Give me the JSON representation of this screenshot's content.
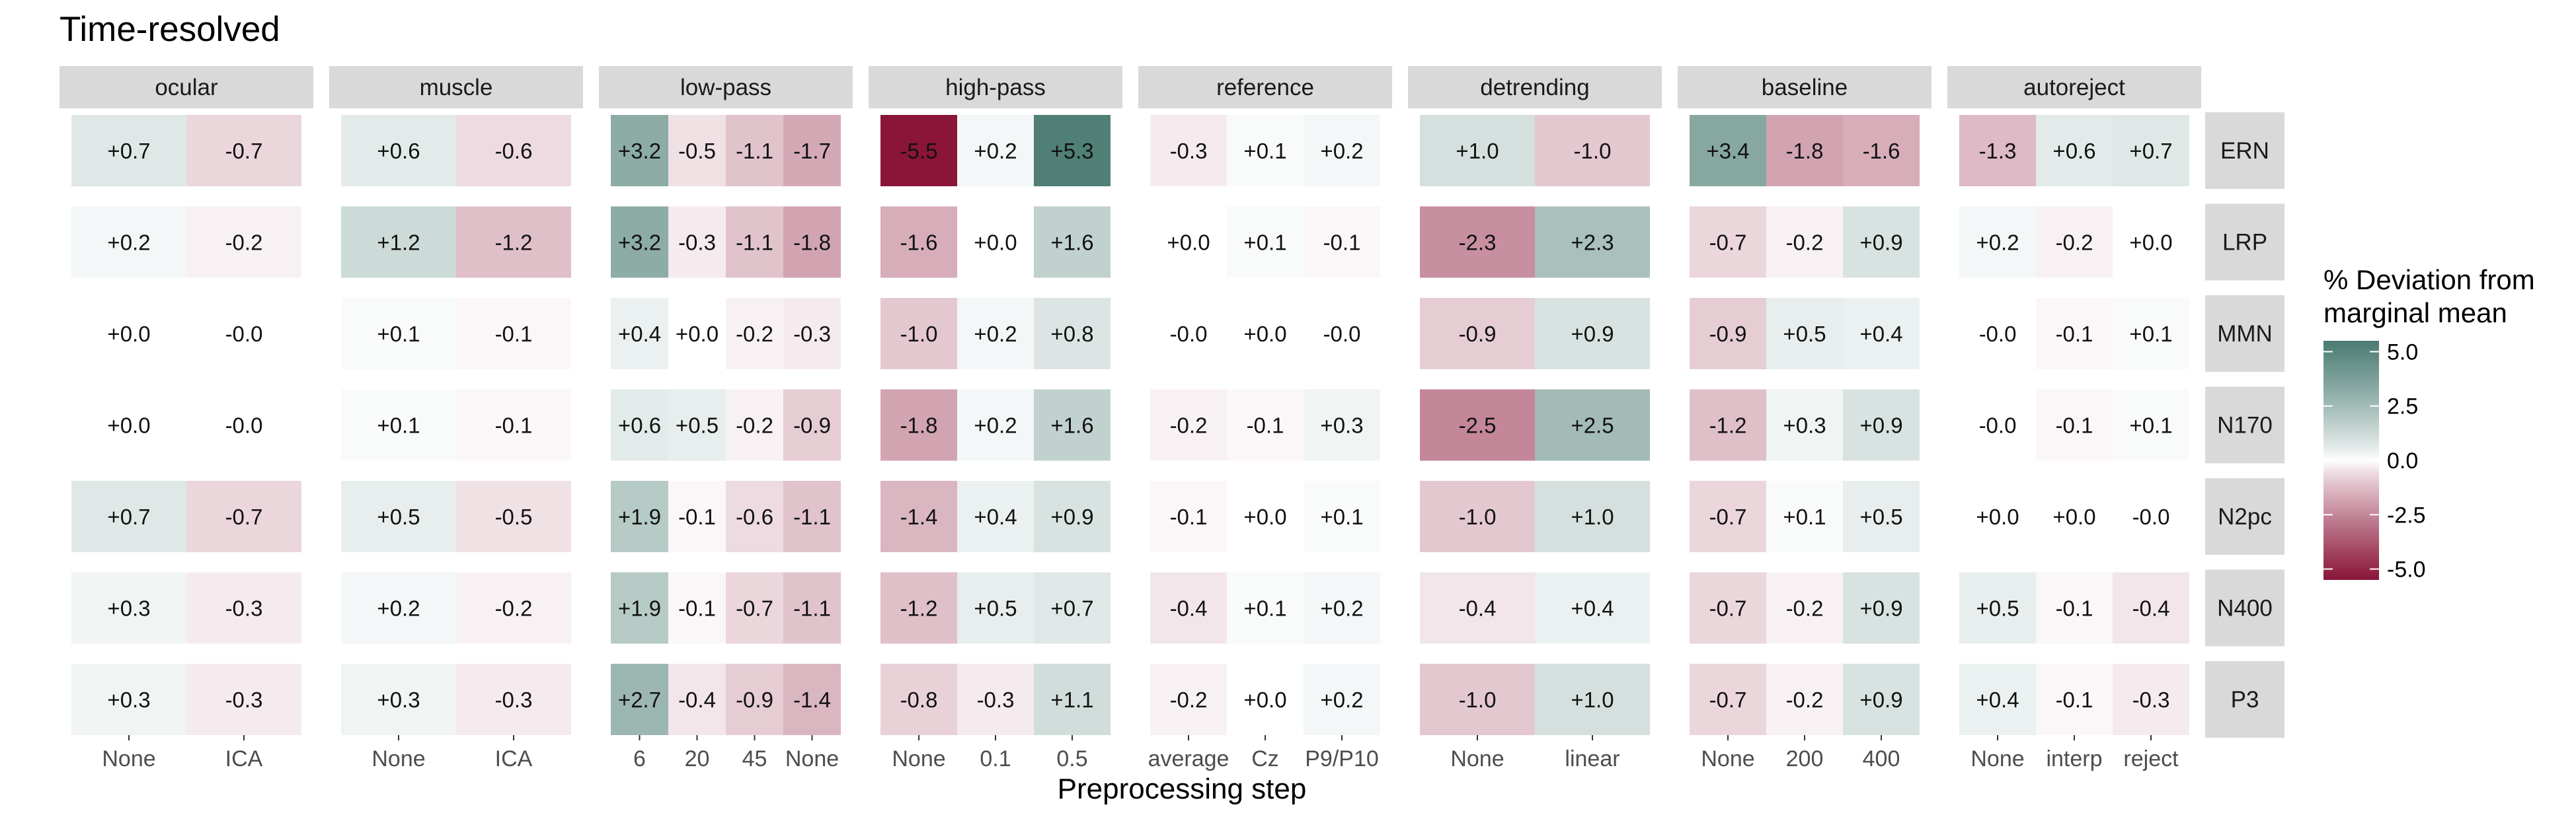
{
  "chart_data": {
    "type": "heatmap",
    "title": "Time-resolved",
    "xlabel": "Preprocessing step",
    "ylabel": "",
    "rows": [
      "ERN",
      "LRP",
      "MMN",
      "N170",
      "N2pc",
      "N400",
      "P3"
    ],
    "legend": {
      "title_lines": [
        "% Deviation from",
        "marginal mean"
      ],
      "ticks": [
        5.0,
        2.5,
        0.0,
        -2.5,
        -5.0
      ],
      "tick_labels": [
        "5.0",
        "2.5",
        "0.0",
        "-2.5",
        "-5.0"
      ],
      "range": [
        -5.5,
        5.5
      ],
      "colors": {
        "high": "#4a7b72",
        "mid": "#ffffff",
        "low": "#8a1538"
      }
    },
    "facets": [
      {
        "name": "ocular",
        "levels": [
          "None",
          "ICA"
        ],
        "values": [
          [
            0.7,
            -0.7
          ],
          [
            0.2,
            -0.2
          ],
          [
            0.0,
            -0.0
          ],
          [
            0.0,
            -0.0
          ],
          [
            0.7,
            -0.7
          ],
          [
            0.3,
            -0.3
          ],
          [
            0.3,
            -0.3
          ]
        ],
        "labels": [
          [
            "+0.7",
            "-0.7"
          ],
          [
            "+0.2",
            "-0.2"
          ],
          [
            "+0.0",
            "-0.0"
          ],
          [
            "+0.0",
            "-0.0"
          ],
          [
            "+0.7",
            "-0.7"
          ],
          [
            "+0.3",
            "-0.3"
          ],
          [
            "+0.3",
            "-0.3"
          ]
        ]
      },
      {
        "name": "muscle",
        "levels": [
          "None",
          "ICA"
        ],
        "values": [
          [
            0.6,
            -0.6
          ],
          [
            1.2,
            -1.2
          ],
          [
            0.1,
            -0.1
          ],
          [
            0.1,
            -0.1
          ],
          [
            0.5,
            -0.5
          ],
          [
            0.2,
            -0.2
          ],
          [
            0.3,
            -0.3
          ]
        ],
        "labels": [
          [
            "+0.6",
            "-0.6"
          ],
          [
            "+1.2",
            "-1.2"
          ],
          [
            "+0.1",
            "-0.1"
          ],
          [
            "+0.1",
            "-0.1"
          ],
          [
            "+0.5",
            "-0.5"
          ],
          [
            "+0.2",
            "-0.2"
          ],
          [
            "+0.3",
            "-0.3"
          ]
        ]
      },
      {
        "name": "low-pass",
        "levels": [
          "6",
          "20",
          "45",
          "None"
        ],
        "values": [
          [
            3.2,
            -0.5,
            -1.1,
            -1.7
          ],
          [
            3.2,
            -0.3,
            -1.1,
            -1.8
          ],
          [
            0.4,
            0.0,
            -0.2,
            -0.3
          ],
          [
            0.6,
            0.5,
            -0.2,
            -0.9
          ],
          [
            1.9,
            -0.1,
            -0.6,
            -1.1
          ],
          [
            1.9,
            -0.1,
            -0.7,
            -1.1
          ],
          [
            2.7,
            -0.4,
            -0.9,
            -1.4
          ]
        ],
        "labels": [
          [
            "+3.2",
            "-0.5",
            "-1.1",
            "-1.7"
          ],
          [
            "+3.2",
            "-0.3",
            "-1.1",
            "-1.8"
          ],
          [
            "+0.4",
            "+0.0",
            "-0.2",
            "-0.3"
          ],
          [
            "+0.6",
            "+0.5",
            "-0.2",
            "-0.9"
          ],
          [
            "+1.9",
            "-0.1",
            "-0.6",
            "-1.1"
          ],
          [
            "+1.9",
            "-0.1",
            "-0.7",
            "-1.1"
          ],
          [
            "+2.7",
            "-0.4",
            "-0.9",
            "-1.4"
          ]
        ]
      },
      {
        "name": "high-pass",
        "levels": [
          "None",
          "0.1",
          "0.5"
        ],
        "values": [
          [
            -5.5,
            0.2,
            5.3
          ],
          [
            -1.6,
            0.0,
            1.6
          ],
          [
            -1.0,
            0.2,
            0.8
          ],
          [
            -1.8,
            0.2,
            1.6
          ],
          [
            -1.4,
            0.4,
            0.9
          ],
          [
            -1.2,
            0.5,
            0.7
          ],
          [
            -0.8,
            -0.3,
            1.1
          ]
        ],
        "labels": [
          [
            "-5.5",
            "+0.2",
            "+5.3"
          ],
          [
            "-1.6",
            "+0.0",
            "+1.6"
          ],
          [
            "-1.0",
            "+0.2",
            "+0.8"
          ],
          [
            "-1.8",
            "+0.2",
            "+1.6"
          ],
          [
            "-1.4",
            "+0.4",
            "+0.9"
          ],
          [
            "-1.2",
            "+0.5",
            "+0.7"
          ],
          [
            "-0.8",
            "-0.3",
            "+1.1"
          ]
        ]
      },
      {
        "name": "reference",
        "levels": [
          "average",
          "Cz",
          "P9/P10"
        ],
        "values": [
          [
            -0.3,
            0.1,
            0.2
          ],
          [
            0.0,
            0.1,
            -0.1
          ],
          [
            -0.0,
            0.0,
            -0.0
          ],
          [
            -0.2,
            -0.1,
            0.3
          ],
          [
            -0.1,
            0.0,
            0.1
          ],
          [
            -0.4,
            0.1,
            0.2
          ],
          [
            -0.2,
            0.0,
            0.2
          ]
        ],
        "labels": [
          [
            "-0.3",
            "+0.1",
            "+0.2"
          ],
          [
            "+0.0",
            "+0.1",
            "-0.1"
          ],
          [
            "-0.0",
            "+0.0",
            "-0.0"
          ],
          [
            "-0.2",
            "-0.1",
            "+0.3"
          ],
          [
            "-0.1",
            "+0.0",
            "+0.1"
          ],
          [
            "-0.4",
            "+0.1",
            "+0.2"
          ],
          [
            "-0.2",
            "+0.0",
            "+0.2"
          ]
        ]
      },
      {
        "name": "detrending",
        "levels": [
          "None",
          "linear"
        ],
        "values": [
          [
            1.0,
            -1.0
          ],
          [
            -2.3,
            2.3
          ],
          [
            -0.9,
            0.9
          ],
          [
            -2.5,
            2.5
          ],
          [
            -1.0,
            1.0
          ],
          [
            -0.4,
            0.4
          ],
          [
            -1.0,
            1.0
          ]
        ],
        "labels": [
          [
            "+1.0",
            "-1.0"
          ],
          [
            "-2.3",
            "+2.3"
          ],
          [
            "-0.9",
            "+0.9"
          ],
          [
            "-2.5",
            "+2.5"
          ],
          [
            "-1.0",
            "+1.0"
          ],
          [
            "-0.4",
            "+0.4"
          ],
          [
            "-1.0",
            "+1.0"
          ]
        ]
      },
      {
        "name": "baseline",
        "levels": [
          "None",
          "200",
          "400"
        ],
        "values": [
          [
            3.4,
            -1.8,
            -1.6
          ],
          [
            -0.7,
            -0.2,
            0.9
          ],
          [
            -0.9,
            0.5,
            0.4
          ],
          [
            -1.2,
            0.3,
            0.9
          ],
          [
            -0.7,
            0.1,
            0.5
          ],
          [
            -0.7,
            -0.2,
            0.9
          ],
          [
            -0.7,
            -0.2,
            0.9
          ]
        ],
        "labels": [
          [
            "+3.4",
            "-1.8",
            "-1.6"
          ],
          [
            "-0.7",
            "-0.2",
            "+0.9"
          ],
          [
            "-0.9",
            "+0.5",
            "+0.4"
          ],
          [
            "-1.2",
            "+0.3",
            "+0.9"
          ],
          [
            "-0.7",
            "+0.1",
            "+0.5"
          ],
          [
            "-0.7",
            "-0.2",
            "+0.9"
          ],
          [
            "-0.7",
            "-0.2",
            "+0.9"
          ]
        ]
      },
      {
        "name": "autoreject",
        "levels": [
          "None",
          "interp",
          "reject"
        ],
        "values": [
          [
            -1.3,
            0.6,
            0.7
          ],
          [
            0.2,
            -0.2,
            0.0
          ],
          [
            -0.0,
            -0.1,
            0.1
          ],
          [
            -0.0,
            -0.1,
            0.1
          ],
          [
            0.0,
            0.0,
            -0.0
          ],
          [
            0.5,
            -0.1,
            -0.4
          ],
          [
            0.4,
            -0.1,
            -0.3
          ]
        ],
        "labels": [
          [
            "-1.3",
            "+0.6",
            "+0.7"
          ],
          [
            "+0.2",
            "-0.2",
            "+0.0"
          ],
          [
            "-0.0",
            "-0.1",
            "+0.1"
          ],
          [
            "-0.0",
            "-0.1",
            "+0.1"
          ],
          [
            "+0.0",
            "+0.0",
            "-0.0"
          ],
          [
            "+0.5",
            "-0.1",
            "-0.4"
          ],
          [
            "+0.4",
            "-0.1",
            "-0.3"
          ]
        ]
      }
    ]
  }
}
